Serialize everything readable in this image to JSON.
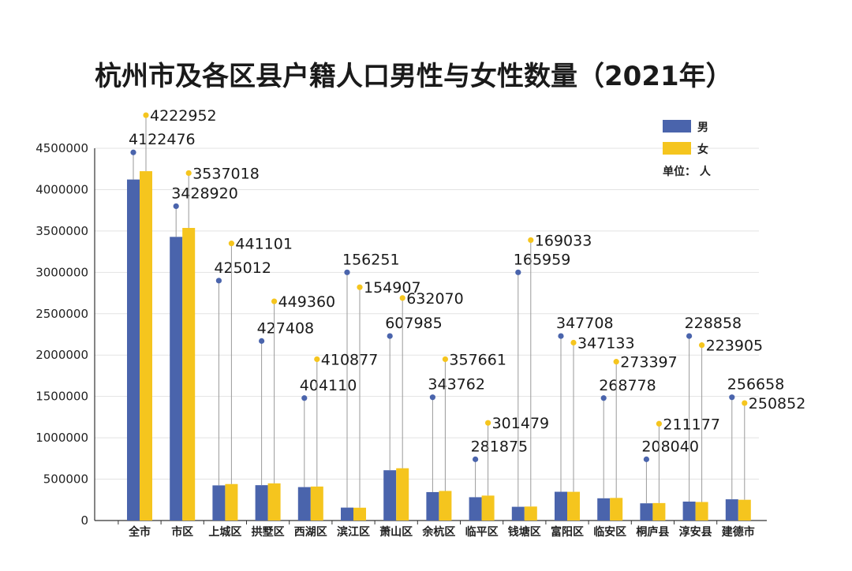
{
  "chart_data": {
    "type": "bar",
    "title": "杭州市及各区县户籍人口男性与女性数量（2021年）",
    "unit_label": "单位：  人",
    "categories": [
      "全市",
      "市区",
      "上城区",
      "拱墅区",
      "西湖区",
      "滨江区",
      "萧山区",
      "余杭区",
      "临平区",
      "钱塘区",
      "富阳区",
      "临安区",
      "桐庐县",
      "淳安县",
      "建德市"
    ],
    "series": [
      {
        "name": "男",
        "color": "#4a64ac",
        "values": [
          4122476,
          3428920,
          425012,
          427408,
          404110,
          156251,
          607985,
          343762,
          281875,
          165959,
          347708,
          268778,
          208040,
          228858,
          256658
        ]
      },
      {
        "name": "女",
        "color": "#f5c51e",
        "values": [
          4222952,
          3537018,
          441101,
          449360,
          410877,
          154907,
          632070,
          357661,
          301479,
          169033,
          347133,
          273397,
          211177,
          223905,
          250852
        ]
      }
    ],
    "yticks": [
      0,
      500000,
      1000000,
      1500000,
      2000000,
      2500000,
      3000000,
      3500000,
      4000000,
      4500000
    ],
    "ylim": [
      0,
      4500000
    ],
    "grid": true,
    "legend": "top-right"
  }
}
